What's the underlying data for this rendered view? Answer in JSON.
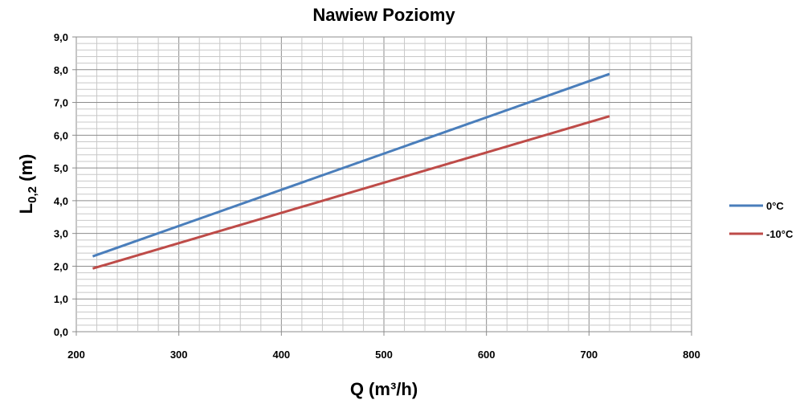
{
  "chart_data": {
    "type": "line",
    "title": "Nawiew Poziomy",
    "xlabel": "Q (m³/h)",
    "ylabel_main": "L",
    "ylabel_sub": "0,2",
    "ylabel_unit": " (m)",
    "xlim": [
      200,
      800
    ],
    "ylim": [
      0,
      9
    ],
    "x_ticks": [
      200,
      300,
      400,
      500,
      600,
      700,
      800
    ],
    "x_tick_labels": [
      "200",
      "300",
      "400",
      "500",
      "600",
      "700",
      "800"
    ],
    "y_ticks": [
      0,
      1,
      2,
      3,
      4,
      5,
      6,
      7,
      8,
      9
    ],
    "y_tick_labels": [
      "0,0",
      "1,0",
      "2,0",
      "3,0",
      "4,0",
      "5,0",
      "6,0",
      "7,0",
      "8,0",
      "9,0"
    ],
    "grid": true,
    "legend_position": "right",
    "series": [
      {
        "name": "0°C",
        "color": "#4a7ebb",
        "x": [
          216,
          720
        ],
        "y": [
          2.3,
          7.87
        ]
      },
      {
        "name": "-10°C",
        "color": "#be4b48",
        "x": [
          216,
          720
        ],
        "y": [
          1.93,
          6.58
        ]
      }
    ]
  }
}
